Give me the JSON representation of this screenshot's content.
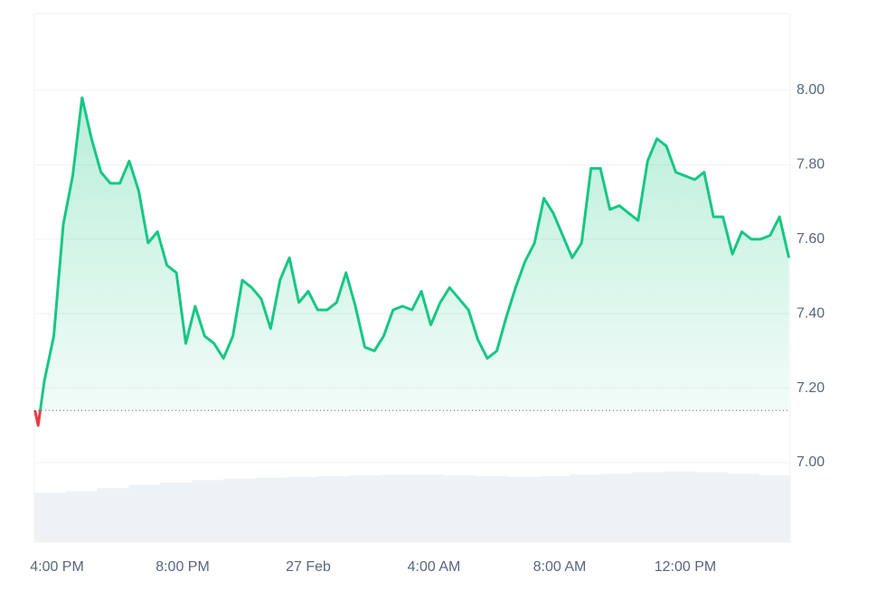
{
  "chart_data": {
    "type": "line",
    "x": [
      15.3,
      15.4,
      15.6,
      15.9,
      16.2,
      16.5,
      16.8,
      17.1,
      17.4,
      17.7,
      18.0,
      18.3,
      18.6,
      18.9,
      19.2,
      19.5,
      19.8,
      20.1,
      20.4,
      20.7,
      21.0,
      21.3,
      21.6,
      21.9,
      22.2,
      22.5,
      22.8,
      23.1,
      23.4,
      23.7,
      24.0,
      24.3,
      24.6,
      24.9,
      25.2,
      25.5,
      25.8,
      26.1,
      26.4,
      26.7,
      27.0,
      27.3,
      27.6,
      27.9,
      28.2,
      28.5,
      28.8,
      29.1,
      29.4,
      29.7,
      30.0,
      30.3,
      30.6,
      30.9,
      31.2,
      31.5,
      31.8,
      32.1,
      32.4,
      32.7,
      33.0,
      33.3,
      33.6,
      33.9,
      34.2,
      34.5,
      34.8,
      35.1,
      35.4,
      35.7,
      36.0,
      36.3,
      36.6,
      36.9,
      37.2,
      37.5,
      37.8,
      38.1,
      38.4,
      38.7,
      39.0,
      39.3
    ],
    "series": [
      {
        "color": "#16c784",
        "values": [
          7.14,
          7.1,
          7.22,
          7.34,
          7.64,
          7.77,
          7.98,
          7.87,
          7.78,
          7.75,
          7.75,
          7.81,
          7.73,
          7.59,
          7.62,
          7.53,
          7.51,
          7.32,
          7.42,
          7.34,
          7.32,
          7.28,
          7.34,
          7.49,
          7.47,
          7.44,
          7.36,
          7.49,
          7.55,
          7.43,
          7.46,
          7.41,
          7.41,
          7.43,
          7.51,
          7.42,
          7.31,
          7.3,
          7.34,
          7.41,
          7.42,
          7.41,
          7.46,
          7.37,
          7.43,
          7.47,
          7.44,
          7.41,
          7.33,
          7.28,
          7.3,
          7.39,
          7.47,
          7.54,
          7.59,
          7.71,
          7.67,
          7.61,
          7.55,
          7.59,
          7.79,
          7.79,
          7.68,
          7.69,
          7.67,
          7.65,
          7.81,
          7.87,
          7.85,
          7.78,
          7.77,
          7.76,
          7.78,
          7.66,
          7.66,
          7.56,
          7.62,
          7.6,
          7.6,
          7.61,
          7.66,
          7.55
        ]
      }
    ],
    "below_color": "#ea3943",
    "volume": {
      "color": "#eff2f5",
      "ylim": [
        0,
        100
      ],
      "values": [
        62,
        64,
        68,
        72,
        75,
        78,
        80,
        81,
        82,
        83,
        84,
        85,
        85,
        84,
        83,
        82,
        83,
        85,
        86,
        88,
        89,
        88,
        86,
        84
      ]
    },
    "xlim": [
      15.28,
      39.34
    ],
    "xticks": [
      {
        "value": 16,
        "label": "4:00 PM"
      },
      {
        "value": 20,
        "label": "8:00 PM"
      },
      {
        "value": 24,
        "label": "27 Feb"
      },
      {
        "value": 28,
        "label": "4:00 AM"
      },
      {
        "value": 32,
        "label": "8:00 AM"
      },
      {
        "value": 36,
        "label": "12:00 PM"
      }
    ],
    "ylim": [
      7.0,
      8.206
    ],
    "yticks": [
      {
        "value": 7.0,
        "label": "7.00"
      },
      {
        "value": 7.2,
        "label": "7.20"
      },
      {
        "value": 7.4,
        "label": "7.40"
      },
      {
        "value": 7.6,
        "label": "7.60"
      },
      {
        "value": 7.8,
        "label": "7.80"
      },
      {
        "value": 8.0,
        "label": "8.00"
      }
    ],
    "grid": true
  }
}
